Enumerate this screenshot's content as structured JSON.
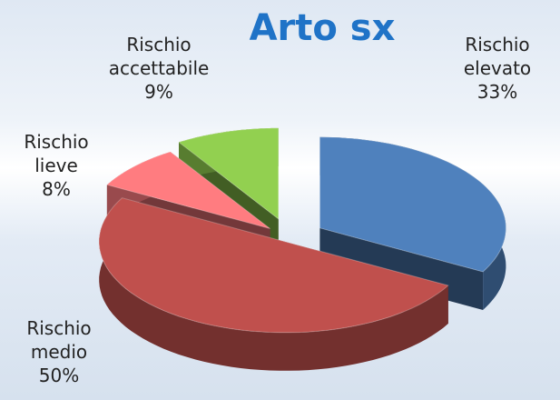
{
  "chart_data": {
    "type": "pie",
    "title": "Arto sx",
    "categories": [
      "Rischio elevato",
      "Rischio medio",
      "Rischio lieve",
      "Rischio accettabile"
    ],
    "values": [
      33,
      50,
      8,
      9
    ],
    "value_labels": [
      "33%",
      "50%",
      "8%",
      "9%"
    ],
    "colors": [
      "#4f81bd",
      "#c0504d",
      "#ff7c80",
      "#92d050"
    ]
  }
}
